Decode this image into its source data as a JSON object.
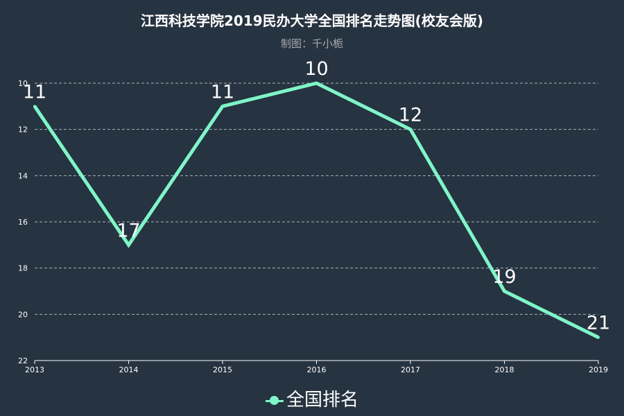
{
  "title": "江西科技学院2019民办大学全国排名走势图(校友会版)",
  "subtitle": "制图：千小栀",
  "colors": {
    "background": "#263340",
    "line": "#7ff5c8",
    "grid": "#aab4bf",
    "axis": "#ffffff",
    "text": "#ffffff"
  },
  "chart_data": {
    "type": "line",
    "x": [
      "2013",
      "2014",
      "2015",
      "2016",
      "2017",
      "2018",
      "2019"
    ],
    "series": [
      {
        "name": "全国排名",
        "values": [
          11,
          17,
          11,
          10,
          12,
          19,
          21
        ]
      }
    ],
    "ylim": [
      10,
      22
    ],
    "y_inverted": true,
    "yticks": [
      10,
      12,
      14,
      16,
      18,
      20,
      22
    ],
    "grid": true,
    "legend_position": "bottom"
  }
}
